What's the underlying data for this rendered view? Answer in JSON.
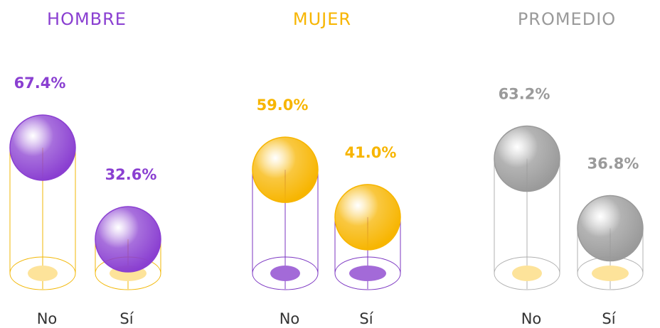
{
  "chart_data": [
    {
      "type": "sphere-bar",
      "title": "HOMBRE",
      "color": "#8a3fd1",
      "outline_color": "#f2b705",
      "base_color": "#fde39a",
      "categories": [
        "No",
        "Sí"
      ],
      "values": [
        67.4,
        32.6
      ],
      "value_labels": [
        "67.4%",
        "32.6%"
      ]
    },
    {
      "type": "sphere-bar",
      "title": "MUJER",
      "color": "#f7b500",
      "outline_color": "#7b35c2",
      "base_color": "#a36ad8",
      "categories": [
        "No",
        "Sí"
      ],
      "values": [
        59.0,
        41.0
      ],
      "value_labels": [
        "59.0%",
        "41.0%"
      ]
    },
    {
      "type": "sphere-bar",
      "title": "PROMEDIO",
      "color": "#9a9a9a",
      "outline_color": "#b0b0b0",
      "base_color": "#fde39a",
      "categories": [
        "No",
        "Sí"
      ],
      "values": [
        63.2,
        36.8
      ],
      "value_labels": [
        "63.2%",
        "36.8%"
      ]
    }
  ]
}
